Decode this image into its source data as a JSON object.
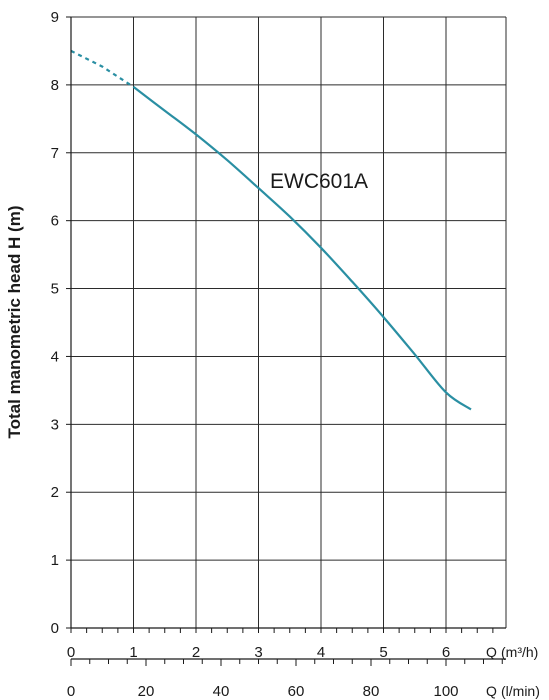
{
  "chart_data": {
    "type": "line",
    "title": "",
    "ylabel": "Total manometric head H (m)",
    "ylim": [
      0,
      9
    ],
    "yticks": [
      "0",
      "1",
      "2",
      "3",
      "4",
      "5",
      "6",
      "7",
      "8",
      "9"
    ],
    "xlim": [
      0,
      6.6
    ],
    "xticks": [
      "0",
      "1",
      "2",
      "3",
      "4",
      "5",
      "6"
    ],
    "xlabel": "Q",
    "xunit": "(m³/h)",
    "x2lim": [
      0,
      110
    ],
    "x2ticks": [
      "0",
      "20",
      "40",
      "60",
      "80",
      "100"
    ],
    "x2label": "Q",
    "x2unit": "(l/min)",
    "grid": true,
    "series": [
      {
        "name": "EWC601A",
        "color": "#2a8fa3",
        "dashed": {
          "x": [
            0.0,
            0.5,
            1.0
          ],
          "y": [
            8.5,
            8.27,
            7.97
          ]
        },
        "x": [
          1.0,
          1.5,
          2.0,
          2.5,
          3.0,
          3.5,
          4.0,
          4.5,
          5.0,
          5.5,
          6.0,
          6.4
        ],
        "y": [
          7.97,
          7.62,
          7.27,
          6.89,
          6.48,
          6.06,
          5.6,
          5.1,
          4.58,
          4.03,
          3.47,
          3.22
        ]
      }
    ]
  }
}
